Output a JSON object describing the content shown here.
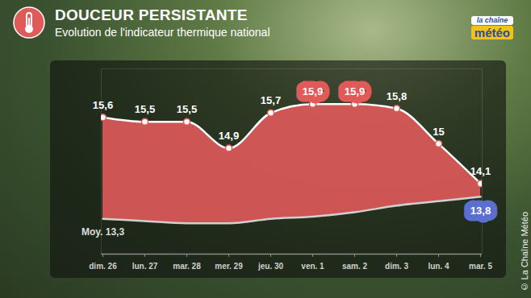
{
  "chart_data": {
    "type": "area",
    "title": "DOUCEUR PERSISTANTE",
    "subtitle": "Evolution de l'indicateur thermique national",
    "logo": [
      "la chaîne",
      "météo"
    ],
    "caption": "© La Chaîne Météo",
    "categories": [
      "dim. 26",
      "lun. 27",
      "mar. 28",
      "mer. 29",
      "jeu. 30",
      "ven. 1",
      "sam. 2",
      "dim. 3",
      "lun. 4",
      "mar. 5"
    ],
    "series": [
      {
        "color": "#e05a5a",
        "marker": "circle",
        "values": [
          15.6,
          15.5,
          15.5,
          14.9,
          15.7,
          15.9,
          15.9,
          15.8,
          15,
          14.1
        ],
        "value_labels": [
          "15,6",
          "15,5",
          "15,5",
          "14,9",
          "15,7",
          "15,9",
          "15,9",
          "15,8",
          "15",
          "14,1"
        ]
      },
      {
        "name": "Moy.",
        "color": "#d0d0d0",
        "values": [
          13.3,
          13.25,
          13.2,
          13.2,
          13.3,
          13.35,
          13.45,
          13.6,
          13.7,
          13.8
        ],
        "value_labels": [
          "13,3",
          null,
          null,
          null,
          null,
          null,
          null,
          null,
          null,
          "13,8"
        ]
      }
    ],
    "ylim": [
      12.5,
      16.7
    ],
    "data_labels": true,
    "tick_labels": "x",
    "grid": false
  }
}
